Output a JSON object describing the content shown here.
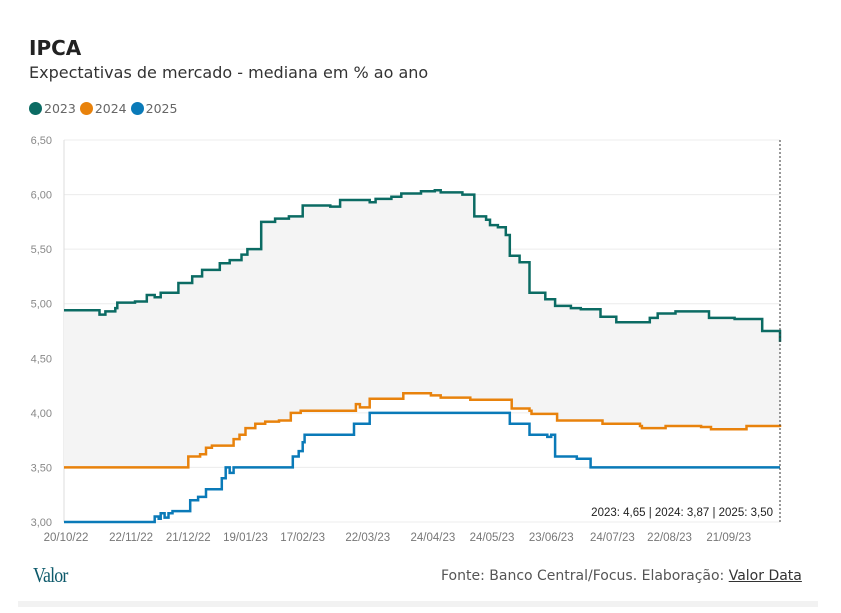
{
  "header": {
    "title": "IPCA",
    "subtitle": "Expectativas de mercado - mediana em % ao ano"
  },
  "footer": {
    "logo": "Valor",
    "source": "Fonte: Banco Central/Focus. Elaboração: ",
    "source_link": "Valor Data"
  },
  "chart_data": {
    "type": "line",
    "title": "IPCA",
    "subtitle": "Expectativas de mercado - mediana em % ao ano",
    "ylim": [
      3.0,
      6.5
    ],
    "yticks": [
      "6,50",
      "6,00",
      "5,50",
      "5,00",
      "4,50",
      "4,00",
      "3,50",
      "3,00"
    ],
    "ytick_values": [
      6.5,
      6.0,
      5.5,
      5.0,
      4.5,
      4.0,
      3.5,
      3.0
    ],
    "xlim": [
      "2022-10-20",
      "2023-10-18"
    ],
    "xticks": [
      "20/10/22",
      "22/11/22",
      "21/12/22",
      "19/01/23",
      "17/02/23",
      "22/03/23",
      "24/04/23",
      "24/05/23",
      "23/06/23",
      "24/07/23",
      "22/08/23",
      "21/09/23"
    ],
    "xtick_dates": [
      "2022-10-20",
      "2022-11-22",
      "2022-12-21",
      "2023-01-19",
      "2023-02-17",
      "2023-03-22",
      "2023-04-24",
      "2023-05-24",
      "2023-06-23",
      "2023-07-24",
      "2023-08-22",
      "2023-09-21"
    ],
    "grid": true,
    "legend_position": "top-left",
    "annotation": "2023: 4,65 | 2024: 3,87 | 2025: 3,50",
    "series": [
      {
        "name": "2023",
        "color": "#0b6b63",
        "points": [
          [
            "2022-10-20",
            4.94
          ],
          [
            "2022-11-07",
            4.9
          ],
          [
            "2022-11-10",
            4.93
          ],
          [
            "2022-11-15",
            4.96
          ],
          [
            "2022-11-16",
            5.01
          ],
          [
            "2022-11-25",
            5.02
          ],
          [
            "2022-12-01",
            5.08
          ],
          [
            "2022-12-05",
            5.06
          ],
          [
            "2022-12-08",
            5.1
          ],
          [
            "2022-12-17",
            5.19
          ],
          [
            "2022-12-24",
            5.25
          ],
          [
            "2022-12-29",
            5.31
          ],
          [
            "2023-01-07",
            5.37
          ],
          [
            "2023-01-12",
            5.4
          ],
          [
            "2023-01-18",
            5.45
          ],
          [
            "2023-01-21",
            5.5
          ],
          [
            "2023-01-28",
            5.75
          ],
          [
            "2023-02-04",
            5.78
          ],
          [
            "2023-02-11",
            5.8
          ],
          [
            "2023-02-18",
            5.9
          ],
          [
            "2023-03-04",
            5.89
          ],
          [
            "2023-03-09",
            5.95
          ],
          [
            "2023-03-24",
            5.93
          ],
          [
            "2023-03-27",
            5.96
          ],
          [
            "2023-04-04",
            5.98
          ],
          [
            "2023-04-09",
            6.01
          ],
          [
            "2023-04-19",
            6.03
          ],
          [
            "2023-04-26",
            6.04
          ],
          [
            "2023-04-29",
            6.02
          ],
          [
            "2023-05-10",
            6.0
          ],
          [
            "2023-05-16",
            5.8
          ],
          [
            "2023-05-22",
            5.77
          ],
          [
            "2023-05-24",
            5.72
          ],
          [
            "2023-05-28",
            5.7
          ],
          [
            "2023-06-01",
            5.63
          ],
          [
            "2023-06-03",
            5.44
          ],
          [
            "2023-06-08",
            5.38
          ],
          [
            "2023-06-13",
            5.1
          ],
          [
            "2023-06-21",
            5.04
          ],
          [
            "2023-06-26",
            4.98
          ],
          [
            "2023-07-04",
            4.96
          ],
          [
            "2023-07-09",
            4.95
          ],
          [
            "2023-07-19",
            4.88
          ],
          [
            "2023-07-27",
            4.83
          ],
          [
            "2023-08-08",
            4.83
          ],
          [
            "2023-08-13",
            4.87
          ],
          [
            "2023-08-17",
            4.91
          ],
          [
            "2023-08-26",
            4.93
          ],
          [
            "2023-09-12",
            4.87
          ],
          [
            "2023-09-25",
            4.86
          ],
          [
            "2023-10-09",
            4.75
          ],
          [
            "2023-10-17",
            4.75
          ],
          [
            "2023-10-18",
            4.65
          ]
        ]
      },
      {
        "name": "2024",
        "color": "#e8820c",
        "points": [
          [
            "2022-10-20",
            3.5
          ],
          [
            "2022-12-22",
            3.6
          ],
          [
            "2022-12-28",
            3.62
          ],
          [
            "2022-12-31",
            3.68
          ],
          [
            "2023-01-03",
            3.7
          ],
          [
            "2023-01-14",
            3.76
          ],
          [
            "2023-01-17",
            3.8
          ],
          [
            "2023-01-20",
            3.86
          ],
          [
            "2023-01-25",
            3.9
          ],
          [
            "2023-01-30",
            3.92
          ],
          [
            "2023-02-06",
            3.93
          ],
          [
            "2023-02-12",
            4.0
          ],
          [
            "2023-02-17",
            4.02
          ],
          [
            "2023-03-12",
            4.02
          ],
          [
            "2023-03-17",
            4.08
          ],
          [
            "2023-03-19",
            4.05
          ],
          [
            "2023-03-24",
            4.13
          ],
          [
            "2023-04-10",
            4.18
          ],
          [
            "2023-04-24",
            4.16
          ],
          [
            "2023-04-29",
            4.14
          ],
          [
            "2023-05-14",
            4.12
          ],
          [
            "2023-06-04",
            4.04
          ],
          [
            "2023-06-13",
            4.02
          ],
          [
            "2023-06-14",
            3.99
          ],
          [
            "2023-06-27",
            3.93
          ],
          [
            "2023-07-20",
            3.9
          ],
          [
            "2023-08-08",
            3.88
          ],
          [
            "2023-08-09",
            3.86
          ],
          [
            "2023-08-21",
            3.88
          ],
          [
            "2023-09-08",
            3.87
          ],
          [
            "2023-09-13",
            3.85
          ],
          [
            "2023-10-01",
            3.88
          ],
          [
            "2023-10-18",
            3.87
          ]
        ]
      },
      {
        "name": "2025",
        "color": "#0a7ab8",
        "points": [
          [
            "2022-10-20",
            3.0
          ],
          [
            "2022-12-05",
            3.05
          ],
          [
            "2022-12-07",
            3.03
          ],
          [
            "2022-12-08",
            3.08
          ],
          [
            "2022-12-10",
            3.04
          ],
          [
            "2022-12-12",
            3.08
          ],
          [
            "2022-12-14",
            3.1
          ],
          [
            "2022-12-23",
            3.2
          ],
          [
            "2022-12-27",
            3.23
          ],
          [
            "2022-12-31",
            3.3
          ],
          [
            "2023-01-08",
            3.4
          ],
          [
            "2023-01-10",
            3.5
          ],
          [
            "2023-01-12",
            3.45
          ],
          [
            "2023-01-14",
            3.5
          ],
          [
            "2023-02-13",
            3.6
          ],
          [
            "2023-02-16",
            3.65
          ],
          [
            "2023-02-18",
            3.73
          ],
          [
            "2023-02-19",
            3.8
          ],
          [
            "2023-03-16",
            3.9
          ],
          [
            "2023-03-24",
            4.0
          ],
          [
            "2023-06-03",
            3.9
          ],
          [
            "2023-06-13",
            3.8
          ],
          [
            "2023-06-22",
            3.78
          ],
          [
            "2023-06-24",
            3.8
          ],
          [
            "2023-06-26",
            3.6
          ],
          [
            "2023-07-07",
            3.58
          ],
          [
            "2023-07-14",
            3.5
          ],
          [
            "2023-10-18",
            3.5
          ]
        ]
      }
    ]
  }
}
